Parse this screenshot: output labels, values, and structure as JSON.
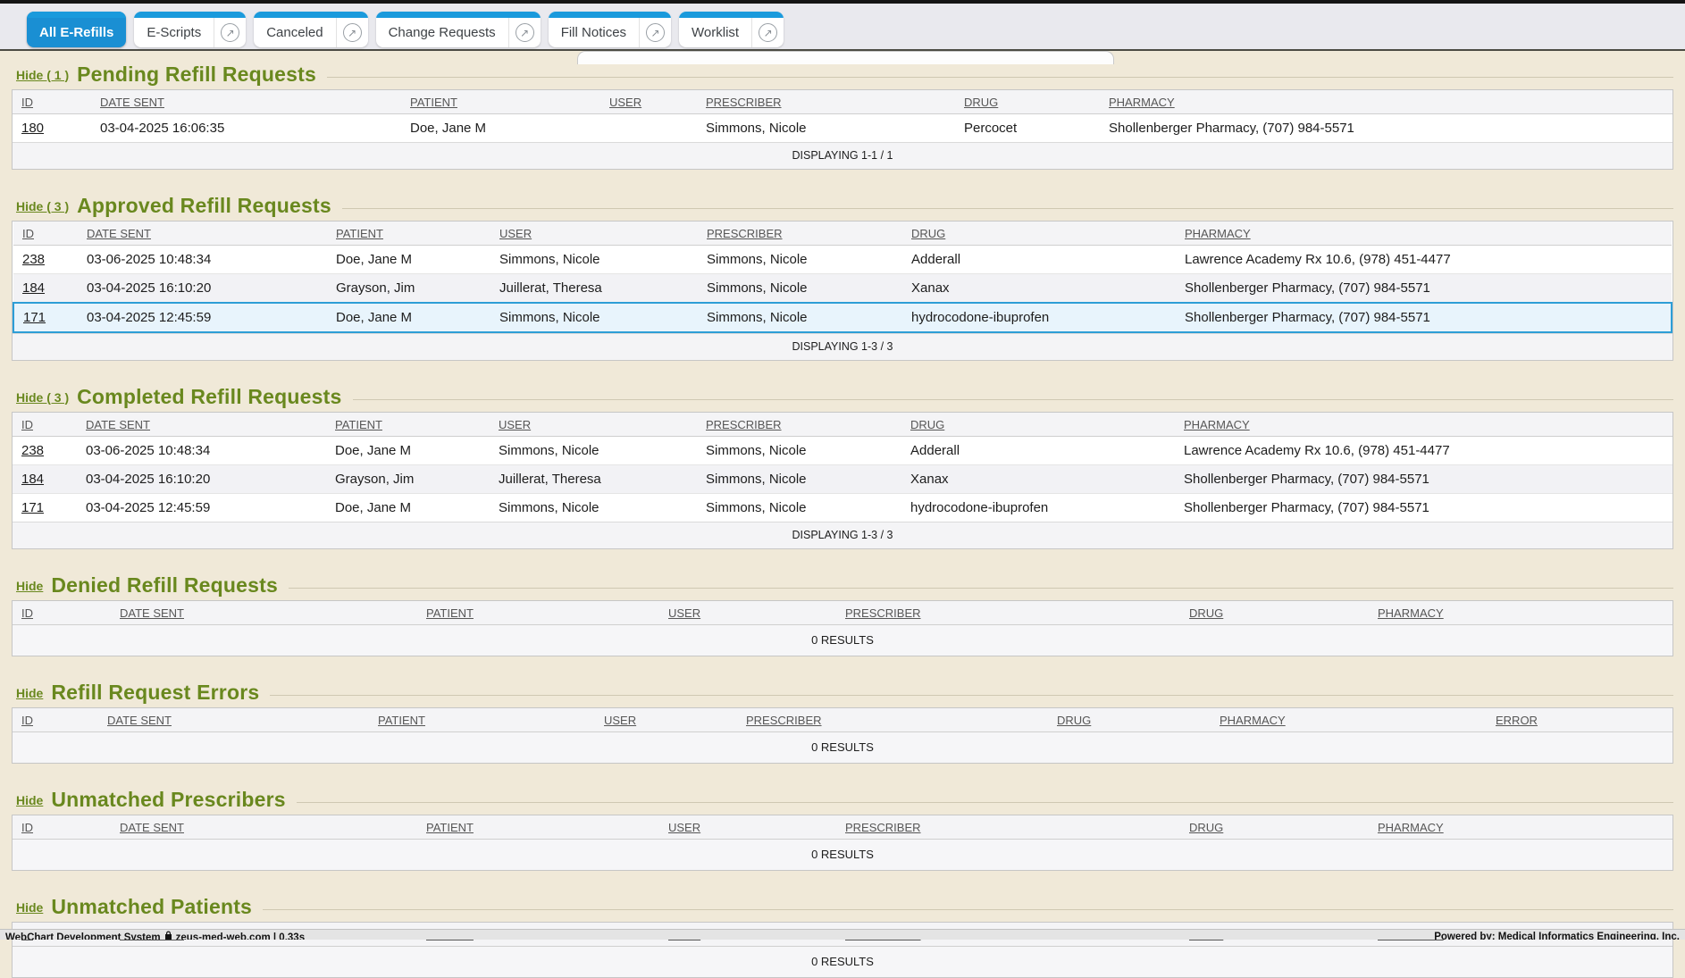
{
  "tabs": [
    {
      "label": "All E-Refills",
      "active": true,
      "external": false
    },
    {
      "label": "E-Scripts",
      "active": false,
      "external": true
    },
    {
      "label": "Canceled",
      "active": false,
      "external": true
    },
    {
      "label": "Change Requests",
      "active": false,
      "external": true
    },
    {
      "label": "Fill Notices",
      "active": false,
      "external": true
    },
    {
      "label": "Worklist",
      "active": false,
      "external": true
    }
  ],
  "icons": {
    "external_link": "↗"
  },
  "colors": {
    "tab_blue": "#1a9adc",
    "section_green": "#69881e",
    "selected_row_border": "#2d9ed6",
    "selected_row_bg": "#e8f4fc",
    "page_background": "#f0e9d8"
  },
  "sections": [
    {
      "hide_label": "Hide ( 1 )",
      "title": "Pending Refill Requests",
      "columns": [
        "ID",
        "DATE SENT",
        "PATIENT",
        "USER",
        "PRESCRIBER",
        "DRUG",
        "PHARMACY"
      ],
      "rows": [
        {
          "cells": [
            "180",
            "03-04-2025 16:06:35",
            "Doe, Jane M",
            "",
            "Simmons, Nicole",
            "Percocet",
            "Shollenberger Pharmacy, (707) 984-5571"
          ]
        }
      ],
      "footer": "DISPLAYING 1-1 / 1",
      "empty_label": ""
    },
    {
      "hide_label": "Hide ( 3 )",
      "title": "Approved Refill Requests",
      "columns": [
        "ID",
        "DATE SENT",
        "PATIENT",
        "USER",
        "PRESCRIBER",
        "DRUG",
        "PHARMACY"
      ],
      "rows": [
        {
          "cells": [
            "238",
            "03-06-2025 10:48:34",
            "Doe, Jane M",
            "Simmons, Nicole",
            "Simmons, Nicole",
            "Adderall",
            "Lawrence Academy Rx 10.6, (978) 451-4477"
          ]
        },
        {
          "cells": [
            "184",
            "03-04-2025 16:10:20",
            "Grayson, Jim",
            "Juillerat, Theresa",
            "Simmons, Nicole",
            "Xanax",
            "Shollenberger Pharmacy, (707) 984-5571"
          ]
        },
        {
          "cells": [
            "171",
            "03-04-2025 12:45:59",
            "Doe, Jane M",
            "Simmons, Nicole",
            "Simmons, Nicole",
            "hydrocodone-ibuprofen",
            "Shollenberger Pharmacy, (707) 984-5571"
          ],
          "selected": true
        }
      ],
      "footer": "DISPLAYING 1-3 / 3",
      "empty_label": ""
    },
    {
      "hide_label": "Hide ( 3 )",
      "title": "Completed Refill Requests",
      "columns": [
        "ID",
        "DATE SENT",
        "PATIENT",
        "USER",
        "PRESCRIBER",
        "DRUG",
        "PHARMACY"
      ],
      "rows": [
        {
          "cells": [
            "238",
            "03-06-2025 10:48:34",
            "Doe, Jane M",
            "Simmons, Nicole",
            "Simmons, Nicole",
            "Adderall",
            "Lawrence Academy Rx 10.6, (978) 451-4477"
          ]
        },
        {
          "cells": [
            "184",
            "03-04-2025 16:10:20",
            "Grayson, Jim",
            "Juillerat, Theresa",
            "Simmons, Nicole",
            "Xanax",
            "Shollenberger Pharmacy, (707) 984-5571"
          ]
        },
        {
          "cells": [
            "171",
            "03-04-2025 12:45:59",
            "Doe, Jane M",
            "Simmons, Nicole",
            "Simmons, Nicole",
            "hydrocodone-ibuprofen",
            "Shollenberger Pharmacy, (707) 984-5571"
          ]
        }
      ],
      "footer": "DISPLAYING 1-3 / 3",
      "empty_label": ""
    },
    {
      "hide_label": "Hide",
      "title": "Denied Refill Requests",
      "columns": [
        "ID",
        "DATE SENT",
        "PATIENT",
        "USER",
        "PRESCRIBER",
        "DRUG",
        "PHARMACY"
      ],
      "rows": [],
      "footer": "",
      "empty_label": "0 RESULTS"
    },
    {
      "hide_label": "Hide",
      "title": "Refill Request Errors",
      "columns": [
        "ID",
        "DATE SENT",
        "PATIENT",
        "USER",
        "PRESCRIBER",
        "DRUG",
        "PHARMACY",
        "ERROR"
      ],
      "rows": [],
      "footer": "",
      "empty_label": "0 RESULTS"
    },
    {
      "hide_label": "Hide",
      "title": "Unmatched Prescribers",
      "columns": [
        "ID",
        "DATE SENT",
        "PATIENT",
        "USER",
        "PRESCRIBER",
        "DRUG",
        "PHARMACY"
      ],
      "rows": [],
      "footer": "",
      "empty_label": "0 RESULTS"
    },
    {
      "hide_label": "Hide",
      "title": "Unmatched Patients",
      "columns": [
        "ID",
        "DATE SENT",
        "PATIENT",
        "USER",
        "PRESCRIBER",
        "DRUG",
        "PHARMACY"
      ],
      "rows": [],
      "footer": "",
      "empty_label": "0 RESULTS"
    }
  ],
  "status_bar": {
    "left_text": "WebChart Development System",
    "site_text": "zeus-med-web.com | 0.33s",
    "right_text": "Powered by: Medical Informatics Engineering, Inc."
  }
}
